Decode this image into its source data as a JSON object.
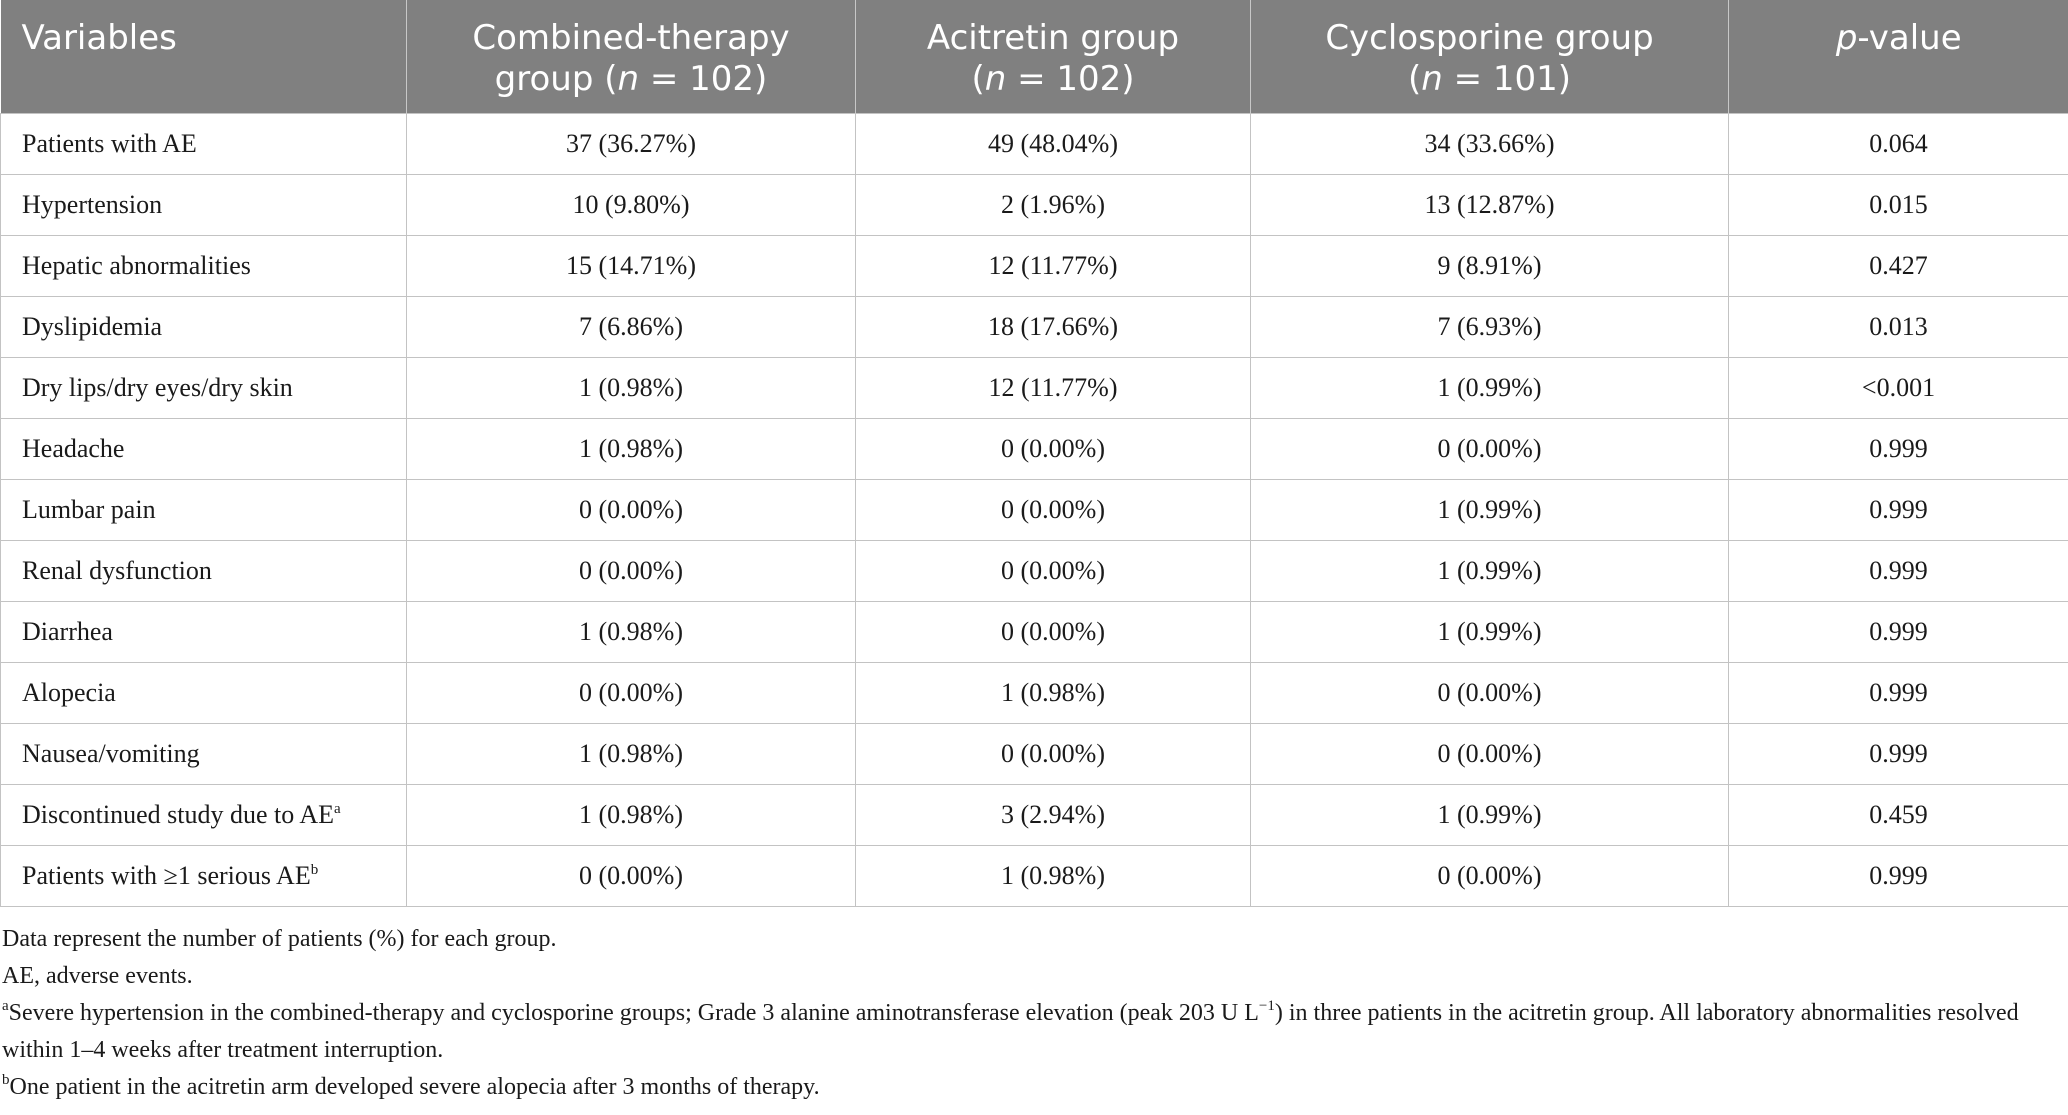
{
  "table": {
    "header": [
      [
        [
          {
            "text": "Variables"
          }
        ]
      ],
      [
        [
          {
            "text": "Combined-therapy"
          }
        ],
        [
          {
            "text": "group ("
          },
          {
            "text": "n",
            "style": "italic"
          },
          {
            "text": " = 102)"
          }
        ]
      ],
      [
        [
          {
            "text": "Acitretin group"
          }
        ],
        [
          {
            "text": "("
          },
          {
            "text": "n",
            "style": "italic"
          },
          {
            "text": " = 102)"
          }
        ]
      ],
      [
        [
          {
            "text": "Cyclosporine group"
          }
        ],
        [
          {
            "text": "("
          },
          {
            "text": "n",
            "style": "italic"
          },
          {
            "text": " = 101)"
          }
        ]
      ],
      [
        [
          {
            "text": "p",
            "style": "italic"
          },
          {
            "text": "-value"
          }
        ]
      ]
    ],
    "rows": [
      [
        "Patients with AE",
        "37 (36.27%)",
        "49 (48.04%)",
        "34 (33.66%)",
        "0.064"
      ],
      [
        "Hypertension",
        "10 (9.80%)",
        "2 (1.96%)",
        "13 (12.87%)",
        "0.015"
      ],
      [
        "Hepatic abnormalities",
        "15 (14.71%)",
        "12 (11.77%)",
        "9 (8.91%)",
        "0.427"
      ],
      [
        "Dyslipidemia",
        "7 (6.86%)",
        "18 (17.66%)",
        "7 (6.93%)",
        "0.013"
      ],
      [
        "Dry lips/dry eyes/dry skin",
        "1 (0.98%)",
        "12 (11.77%)",
        "1 (0.99%)",
        "<0.001"
      ],
      [
        "Headache",
        "1 (0.98%)",
        "0 (0.00%)",
        "0 (0.00%)",
        "0.999"
      ],
      [
        "Lumbar pain",
        "0 (0.00%)",
        "0 (0.00%)",
        "1 (0.99%)",
        "0.999"
      ],
      [
        "Renal dysfunction",
        "0 (0.00%)",
        "0 (0.00%)",
        "1 (0.99%)",
        "0.999"
      ],
      [
        "Diarrhea",
        "1 (0.98%)",
        "0 (0.00%)",
        "1 (0.99%)",
        "0.999"
      ],
      [
        "Alopecia",
        "0 (0.00%)",
        "1 (0.98%)",
        "0 (0.00%)",
        "0.999"
      ],
      [
        "Nausea/vomiting",
        "1 (0.98%)",
        "0 (0.00%)",
        "0 (0.00%)",
        "0.999"
      ],
      [
        [
          {
            "text": "Discontinued study due to AE"
          },
          {
            "text": "a",
            "style": "sup"
          }
        ],
        "1 (0.98%)",
        "3 (2.94%)",
        "1 (0.99%)",
        "0.459"
      ],
      [
        [
          {
            "text": "Patients with ≥1 serious AE"
          },
          {
            "text": "b",
            "style": "sup"
          }
        ],
        "0 (0.00%)",
        "1 (0.98%)",
        "0 (0.00%)",
        "0.999"
      ]
    ]
  },
  "footnotes": [
    "Data represent the number of patients (%) for each group.",
    "AE, adverse events.",
    [
      {
        "text": "a",
        "style": "sup"
      },
      {
        "text": "Severe hypertension in the combined-therapy and cyclosporine groups; Grade 3 alanine aminotransferase elevation (peak 203 U L"
      },
      {
        "text": "−1",
        "style": "sup"
      },
      {
        "text": ") in three patients in the acitretin group. All laboratory abnormalities resolved within 1–4 weeks after treatment interruption."
      }
    ],
    [
      {
        "text": "b",
        "style": "sup"
      },
      {
        "text": "One patient in the acitretin arm developed severe alopecia after 3 months of therapy."
      }
    ]
  ]
}
